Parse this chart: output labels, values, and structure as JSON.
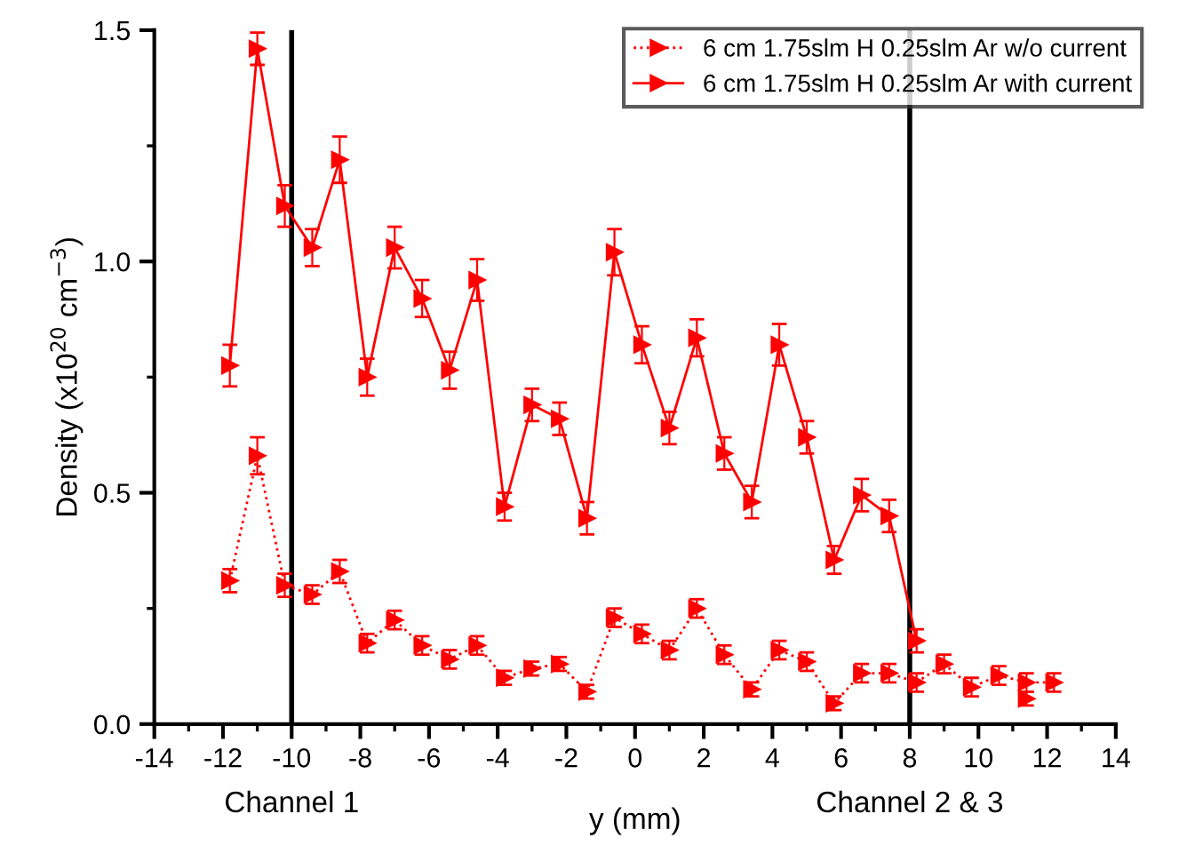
{
  "chart_data": {
    "type": "line",
    "xlabel": "y (mm)",
    "ylabel": "Density (x10$^{20}$ cm$^{−3}$)",
    "xlim": [
      -14,
      14
    ],
    "xticks": [
      -14,
      -12,
      -10,
      -8,
      -6,
      -4,
      -2,
      0,
      2,
      4,
      6,
      8,
      10,
      12,
      14
    ],
    "ylim": [
      0,
      1.5
    ],
    "yticks": [
      {
        "value": 0,
        "label": "0.0"
      },
      {
        "value": 0.5,
        "label": "0.5"
      },
      {
        "value": 1.0,
        "label": "1.0"
      },
      {
        "value": 1.5,
        "label": "1.5"
      }
    ],
    "grid": false,
    "legend": "top right",
    "marker": "triangle",
    "ref_lines": [
      {
        "axis": "x",
        "value": -10,
        "color": "#000000"
      },
      {
        "axis": "x",
        "value": 8,
        "color": "#000000"
      }
    ],
    "annotations": [
      {
        "text": "Channel 1",
        "x": -10,
        "y": 0
      },
      {
        "text": "Channel 2 & 3",
        "x": 8,
        "y": 0
      }
    ],
    "series": [
      {
        "name": "6 cm 1.75slm H 0.25slm Ar w/o current",
        "color": "#ff0000",
        "line_style": "dotted",
        "x": [
          -11.8,
          -11.0,
          -10.2,
          -9.4,
          -8.6,
          -7.8,
          -7.0,
          -6.2,
          -5.4,
          -4.6,
          -3.8,
          -3.0,
          -2.2,
          -1.4,
          -0.6,
          0.2,
          1.0,
          1.8,
          2.6,
          3.4,
          4.2,
          5.0,
          5.8,
          6.6,
          7.4,
          8.2,
          9.0,
          9.8,
          10.6,
          11.4,
          12.2
        ],
        "values": [
          0.31,
          0.58,
          0.3,
          0.28,
          0.33,
          0.175,
          0.225,
          0.17,
          0.14,
          0.17,
          0.1,
          0.12,
          0.13,
          0.07,
          0.23,
          0.195,
          0.16,
          0.25,
          0.15,
          0.075,
          0.16,
          0.135,
          0.045,
          0.11,
          0.11,
          0.09,
          0.13,
          0.08,
          0.105,
          0.09,
          0.09
        ],
        "errors": [
          0.025,
          0.04,
          0.025,
          0.02,
          0.025,
          0.02,
          0.02,
          0.02,
          0.02,
          0.02,
          0.015,
          0.015,
          0.015,
          0.015,
          0.02,
          0.02,
          0.02,
          0.02,
          0.02,
          0.015,
          0.02,
          0.02,
          0.015,
          0.02,
          0.02,
          0.02,
          0.02,
          0.02,
          0.02,
          0.02,
          0.02
        ]
      },
      {
        "name": "6 cm 1.75slm H 0.25slm Ar with current",
        "color": "#ff0000",
        "line_style": "solid",
        "x": [
          -11.8,
          -11.0,
          -10.2,
          -9.4,
          -8.6,
          -7.8,
          -7.0,
          -6.2,
          -5.4,
          -4.6,
          -3.8,
          -3.0,
          -2.2,
          -1.4,
          -0.6,
          0.2,
          1.0,
          1.8,
          2.6,
          3.4,
          4.2,
          5.0,
          5.8,
          6.6,
          7.4,
          8.2
        ],
        "values": [
          0.775,
          1.46,
          1.12,
          1.03,
          1.22,
          0.75,
          1.03,
          0.92,
          0.765,
          0.96,
          0.47,
          0.69,
          0.66,
          0.445,
          1.02,
          0.82,
          0.64,
          0.835,
          0.585,
          0.48,
          0.82,
          0.62,
          0.355,
          0.495,
          0.45,
          0.18
        ],
        "errors": [
          0.045,
          0.035,
          0.045,
          0.04,
          0.05,
          0.04,
          0.045,
          0.04,
          0.04,
          0.045,
          0.03,
          0.035,
          0.035,
          0.035,
          0.05,
          0.04,
          0.035,
          0.04,
          0.035,
          0.035,
          0.045,
          0.035,
          0.03,
          0.035,
          0.035,
          0.025
        ]
      },
      {
        "type": "scatter",
        "color": "#ff0000",
        "x": [
          11.4
        ],
        "values": [
          0.055
        ],
        "errors": [
          0.015
        ]
      }
    ]
  }
}
